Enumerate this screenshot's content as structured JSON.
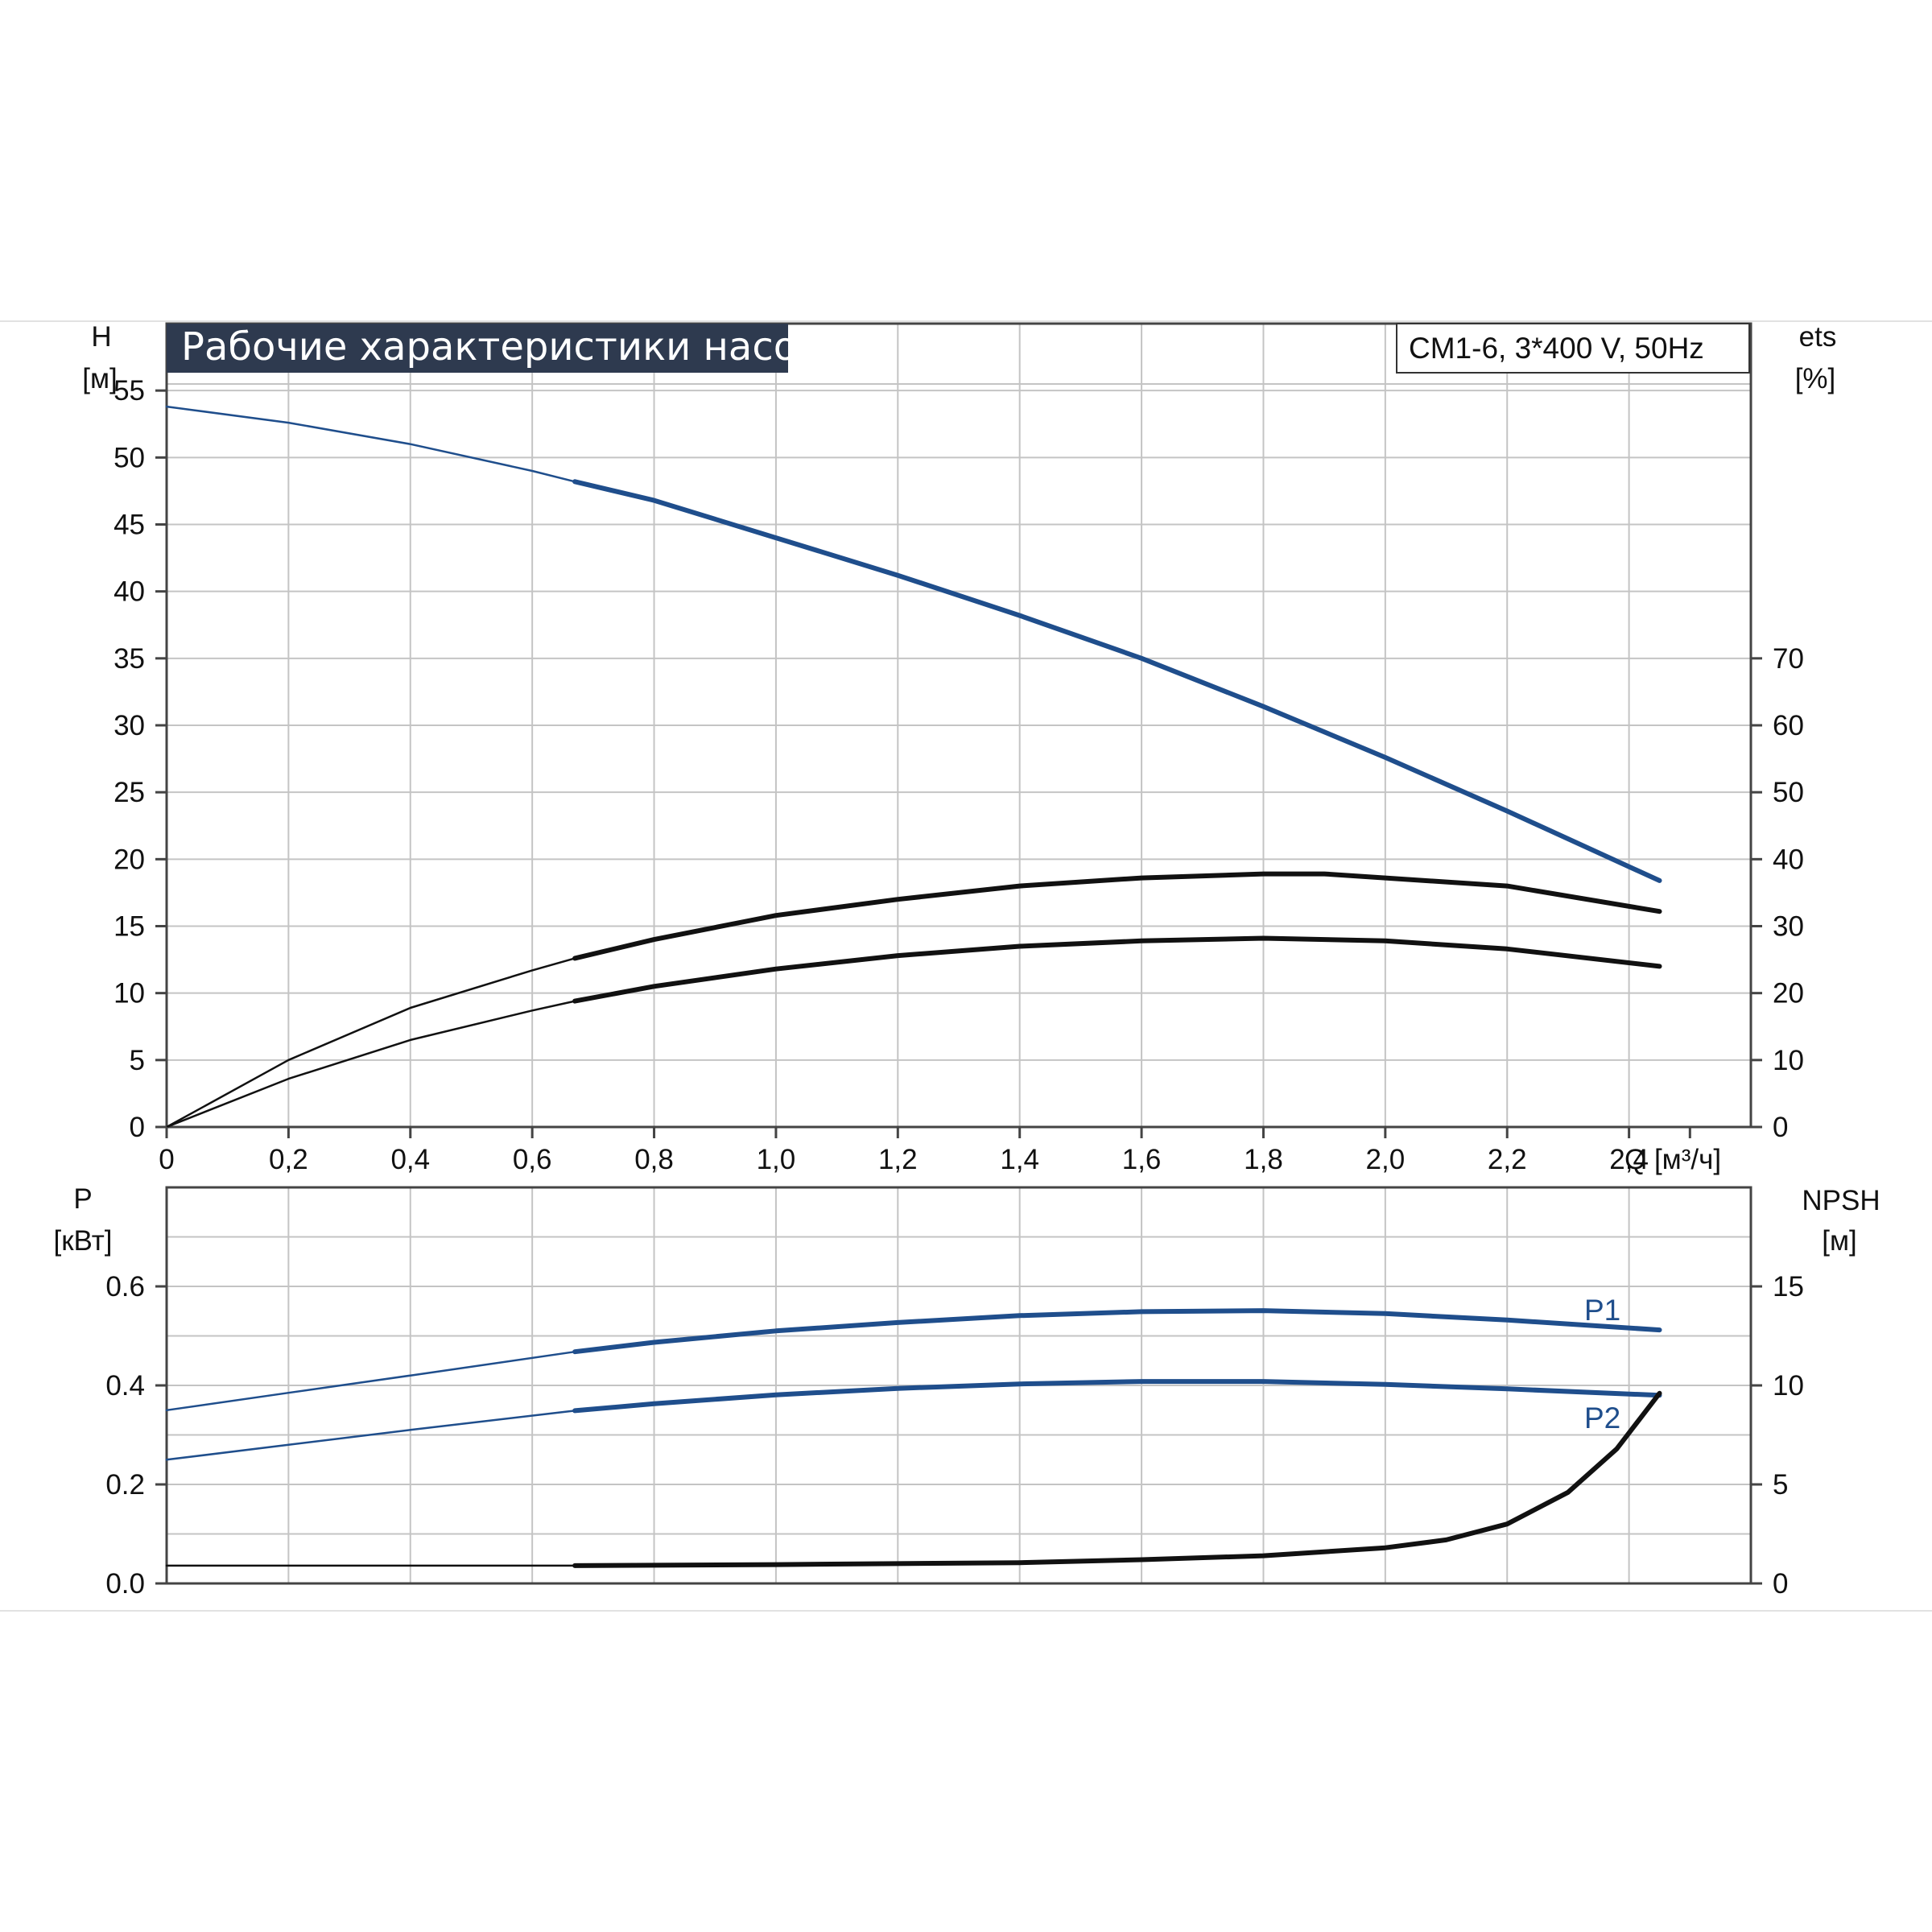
{
  "colors": {
    "blue": "#1f4e8c",
    "black": "#111111",
    "grid": "#c4c4c4",
    "title_bg": "#2e3a4f"
  },
  "title": "Рабочие характеристики насоса",
  "model": "CM1-6, 3*400 V, 50Hz",
  "chart_data": [
    {
      "type": "line",
      "panel": "head-efficiency",
      "x_axis": {
        "label": "Q [м³/ч]",
        "range": [
          0,
          2.6
        ],
        "ticks": [
          0,
          0.2,
          0.4,
          0.6,
          0.8,
          1.0,
          1.2,
          1.4,
          1.6,
          1.8,
          2.0,
          2.2,
          2.4
        ],
        "tick_labels": [
          "0",
          "0,2",
          "0,4",
          "0,6",
          "0,8",
          "1,0",
          "1,2",
          "1,4",
          "1,6",
          "1,8",
          "2,0",
          "2,2",
          "2,4"
        ]
      },
      "y_left": {
        "label_top": "H",
        "label_unit": "[м]",
        "range": [
          0,
          60
        ],
        "ticks": [
          0,
          5,
          10,
          15,
          20,
          25,
          30,
          35,
          40,
          45,
          50,
          55
        ]
      },
      "y_right": {
        "label_top": "ets",
        "label_unit": "[%]",
        "range": [
          0,
          120
        ],
        "ticks": [
          0,
          10,
          20,
          30,
          40,
          50,
          60,
          70
        ]
      },
      "grid": true,
      "series": [
        {
          "axis": "left",
          "color": "blue",
          "x": [
            0,
            0.2,
            0.4,
            0.6,
            0.67,
            0.8,
            1.0,
            1.2,
            1.4,
            1.6,
            1.8,
            2.0,
            2.2,
            2.45
          ],
          "y": [
            53.8,
            52.6,
            51.0,
            49.0,
            48.2,
            46.8,
            44.0,
            41.2,
            38.2,
            35.0,
            31.4,
            27.6,
            23.6,
            18.4
          ],
          "duty_start": 0.67
        },
        {
          "axis": "left",
          "color": "black",
          "x": [
            0,
            0.2,
            0.4,
            0.6,
            0.67,
            0.8,
            1.0,
            1.2,
            1.4,
            1.6,
            1.8,
            1.9,
            2.0,
            2.2,
            2.45
          ],
          "y": [
            0,
            5.0,
            8.9,
            11.7,
            12.6,
            14.0,
            15.8,
            17.0,
            18.0,
            18.6,
            18.9,
            18.9,
            18.6,
            18.0,
            16.1
          ],
          "duty_start": 0.67
        },
        {
          "axis": "left",
          "color": "black",
          "x": [
            0,
            0.2,
            0.4,
            0.6,
            0.67,
            0.8,
            1.0,
            1.2,
            1.4,
            1.6,
            1.8,
            2.0,
            2.2,
            2.45
          ],
          "y": [
            0,
            3.6,
            6.5,
            8.7,
            9.4,
            10.5,
            11.8,
            12.8,
            13.5,
            13.9,
            14.1,
            13.9,
            13.3,
            12.0
          ],
          "duty_start": 0.67
        }
      ]
    },
    {
      "type": "line",
      "panel": "power-npsh",
      "x_axis": {
        "range": [
          0,
          2.6
        ],
        "ticks": [
          0,
          0.2,
          0.4,
          0.6,
          0.8,
          1.0,
          1.2,
          1.4,
          1.6,
          1.8,
          2.0,
          2.2,
          2.4
        ]
      },
      "y_left": {
        "label_top": "P",
        "label_unit": "[кВт]",
        "range": [
          0,
          0.8
        ],
        "ticks": [
          0,
          0.2,
          0.4,
          0.6
        ],
        "tick_labels": [
          "0.0",
          "0.2",
          "0.4",
          "0.6"
        ]
      },
      "y_right": {
        "label_top": "NPSH",
        "label_unit": "[м]",
        "range": [
          0,
          20
        ],
        "ticks": [
          0,
          5,
          10,
          15
        ]
      },
      "grid": true,
      "series": [
        {
          "name": "P1",
          "axis": "left",
          "color": "blue",
          "x": [
            0,
            0.2,
            0.4,
            0.67,
            0.8,
            1.0,
            1.2,
            1.4,
            1.6,
            1.8,
            2.0,
            2.2,
            2.45
          ],
          "y": [
            0.35,
            0.385,
            0.42,
            0.468,
            0.487,
            0.51,
            0.527,
            0.541,
            0.549,
            0.551,
            0.545,
            0.532,
            0.512
          ],
          "duty_start": 0.67
        },
        {
          "name": "P2",
          "axis": "left",
          "color": "blue",
          "x": [
            0,
            0.2,
            0.4,
            0.67,
            0.8,
            1.0,
            1.2,
            1.4,
            1.6,
            1.8,
            2.0,
            2.2,
            2.45
          ],
          "y": [
            0.25,
            0.28,
            0.31,
            0.349,
            0.363,
            0.381,
            0.394,
            0.403,
            0.408,
            0.408,
            0.402,
            0.393,
            0.38
          ],
          "duty_start": 0.67
        },
        {
          "name": "NPSH",
          "axis": "right",
          "color": "black",
          "x": [
            0,
            0.67,
            1.0,
            1.4,
            1.6,
            1.8,
            2.0,
            2.1,
            2.2,
            2.3,
            2.38,
            2.45
          ],
          "y": [
            0.9,
            0.9,
            0.95,
            1.05,
            1.2,
            1.4,
            1.8,
            2.2,
            3.0,
            4.6,
            6.8,
            9.6
          ],
          "duty_start": 0.67
        }
      ]
    }
  ]
}
